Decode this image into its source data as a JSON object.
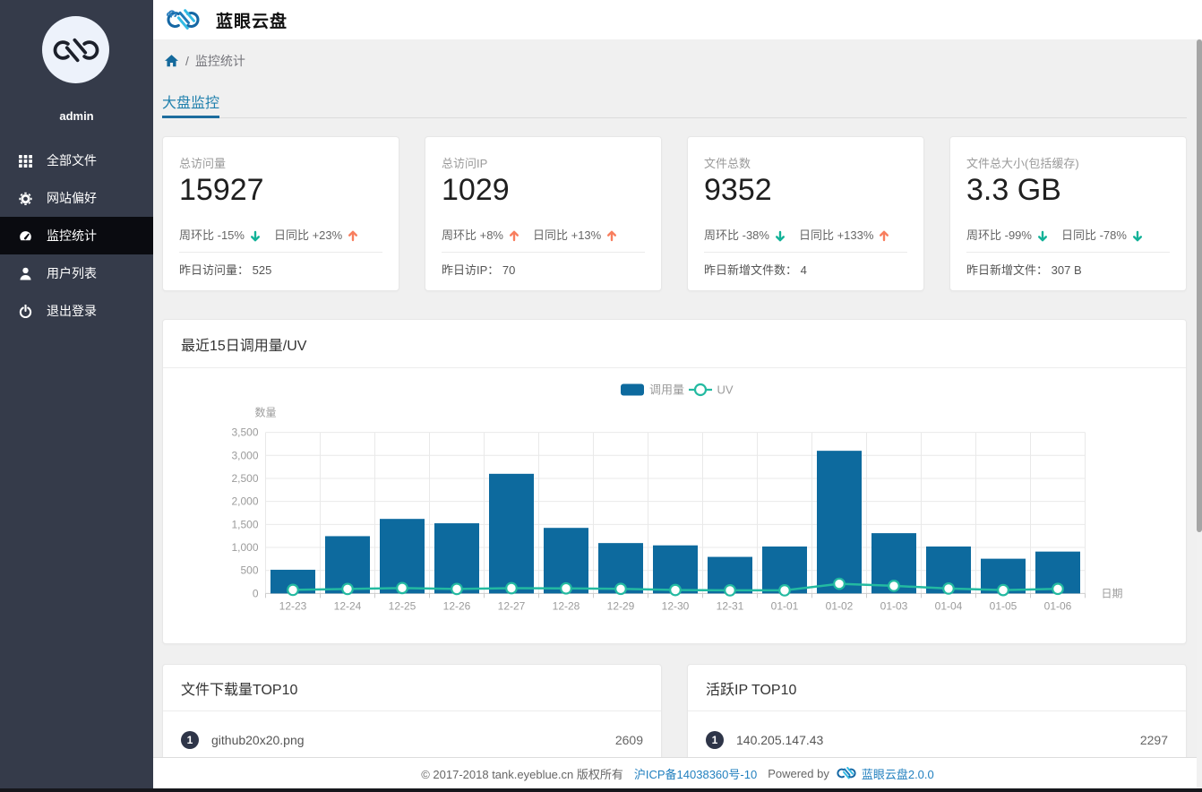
{
  "app": {
    "title": "蓝眼云盘",
    "user": "admin"
  },
  "sidebar": {
    "items": [
      {
        "label": "全部文件",
        "icon": "grid-icon",
        "active": false
      },
      {
        "label": "网站偏好",
        "icon": "gear-icon",
        "active": false
      },
      {
        "label": "监控统计",
        "icon": "dashboard-icon",
        "active": true
      },
      {
        "label": "用户列表",
        "icon": "user-icon",
        "active": false
      },
      {
        "label": "退出登录",
        "icon": "power-icon",
        "active": false
      }
    ]
  },
  "breadcrumb": {
    "separator": "/",
    "current": "监控统计"
  },
  "tabs": [
    {
      "label": "大盘监控",
      "active": true
    }
  ],
  "stat_cards": [
    {
      "label": "总访问量",
      "value": "15927",
      "trends": [
        {
          "text": "周环比 -15%",
          "dir": "down"
        },
        {
          "text": "日同比 +23%",
          "dir": "up"
        }
      ],
      "footer_label": "昨日访问量：",
      "footer_value": "525"
    },
    {
      "label": "总访问IP",
      "value": "1029",
      "trends": [
        {
          "text": "周环比 +8%",
          "dir": "up"
        },
        {
          "text": "日同比 +13%",
          "dir": "up"
        }
      ],
      "footer_label": "昨日访IP：",
      "footer_value": "70"
    },
    {
      "label": "文件总数",
      "value": "9352",
      "trends": [
        {
          "text": "周环比 -38%",
          "dir": "down"
        },
        {
          "text": "日同比 +133%",
          "dir": "up"
        }
      ],
      "footer_label": "昨日新增文件数：",
      "footer_value": "4"
    },
    {
      "label": "文件总大小(包括缓存)",
      "value": "3.3 GB",
      "trends": [
        {
          "text": "周环比 -99%",
          "dir": "down"
        },
        {
          "text": "日同比 -78%",
          "dir": "down"
        }
      ],
      "footer_label": "昨日新增文件：",
      "footer_value": "307 B"
    }
  ],
  "chart_card": {
    "title": "最近15日调用量/UV"
  },
  "chart_data": {
    "type": "bar+line",
    "title": "最近15日调用量/UV",
    "categories": [
      "12-23",
      "12-24",
      "12-25",
      "12-26",
      "12-27",
      "12-28",
      "12-29",
      "12-30",
      "12-31",
      "01-01",
      "01-02",
      "01-03",
      "01-04",
      "01-05",
      "01-06"
    ],
    "series": [
      {
        "name": "调用量",
        "type": "bar",
        "color": "#0d6a9e",
        "values": [
          515,
          1245,
          1620,
          1525,
          2600,
          1425,
          1095,
          1045,
          795,
          1020,
          3100,
          1310,
          1020,
          755,
          910
        ]
      },
      {
        "name": "UV",
        "type": "line",
        "color": "#23baa1",
        "values": [
          78,
          98,
          118,
          98,
          115,
          110,
          100,
          75,
          68,
          68,
          210,
          165,
          107,
          74,
          100
        ]
      }
    ],
    "xlabel": "日期",
    "ylabel": "数量",
    "ylim": [
      0,
      3500
    ],
    "ytick_step": 500,
    "yticks": [
      "0",
      "500",
      "1,000",
      "1,500",
      "2,000",
      "2,500",
      "3,000",
      "3,500"
    ],
    "grid": true,
    "legend_position": "top-center"
  },
  "top_lists": [
    {
      "title": "文件下载量TOP10",
      "items": [
        {
          "rank": "1",
          "name": "github20x20.png",
          "value": "2609"
        }
      ]
    },
    {
      "title": "活跃IP TOP10",
      "items": [
        {
          "rank": "1",
          "name": "140.205.147.43",
          "value": "2297"
        }
      ]
    }
  ],
  "footer": {
    "copyright": "© 2017-2018 tank.eyeblue.cn 版权所有",
    "icp": "沪ICP备14038360号-10",
    "powered_by": "Powered by",
    "product": "蓝眼云盘2.0.0"
  },
  "colors": {
    "sidebar_bg": "#353b4a",
    "sidebar_active_bg": "#0a0b10",
    "accent_blue": "#2080ad",
    "tab_underline": "#1d6d9e",
    "bar_series": "#0d6a9e",
    "line_series": "#23baa1",
    "trend_up": "#f87e5e",
    "trend_down": "#12b298",
    "link_blue": "#2280bf",
    "content_bg": "#f0f0f0"
  }
}
